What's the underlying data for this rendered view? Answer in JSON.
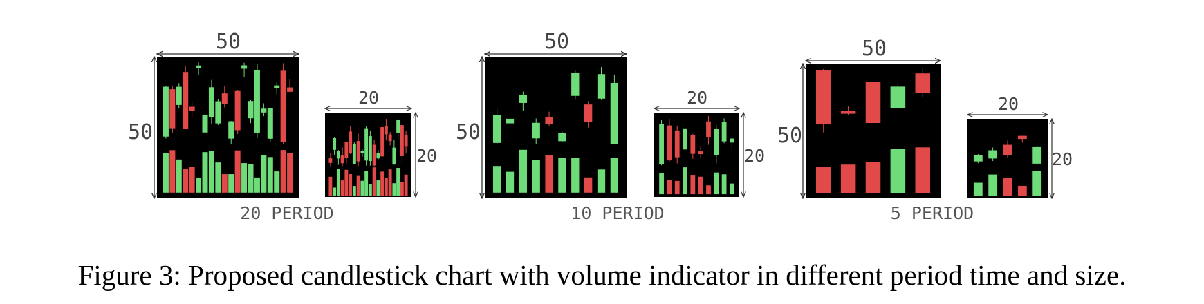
{
  "colors": {
    "bull": "#6fdc7a",
    "bear": "#e24a4a",
    "background": "#000000",
    "wick": "#cccccc"
  },
  "panels": [
    {
      "period_label": "20 PERIOD",
      "large": {
        "width_label": "50",
        "height_label": "50"
      },
      "small": {
        "width_label": "20",
        "height_label": "20"
      }
    },
    {
      "period_label": "10 PERIOD",
      "large": {
        "width_label": "50",
        "height_label": "50"
      },
      "small": {
        "width_label": "20",
        "height_label": "20"
      }
    },
    {
      "period_label": "5 PERIOD",
      "large": {
        "width_label": "50",
        "height_label": "50"
      },
      "small": {
        "width_label": "20",
        "height_label": "20"
      }
    }
  ],
  "caption": "Figure 3: Proposed candlestick chart with volume indicator in different period time and size."
}
